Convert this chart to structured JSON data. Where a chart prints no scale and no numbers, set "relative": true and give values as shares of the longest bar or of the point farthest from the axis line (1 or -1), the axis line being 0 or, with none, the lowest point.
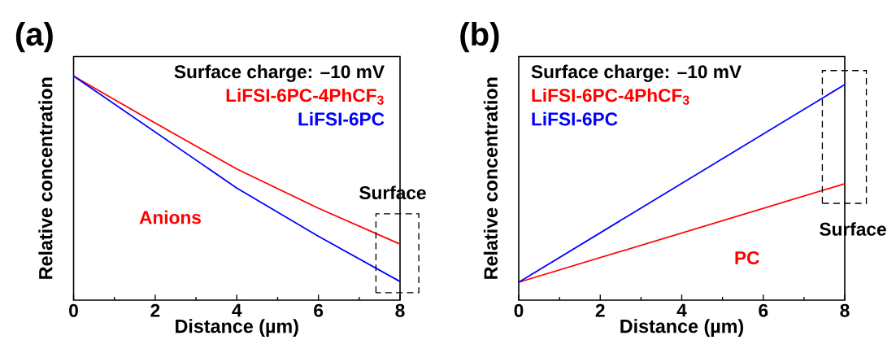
{
  "chart_data": [
    {
      "type": "line",
      "title": "(a)",
      "xlabel": "Distance (µm)",
      "ylabel": "Relative concentration",
      "legend_title": "Surface charge:  –10 mV",
      "legend": "top right",
      "relative": true,
      "xlim": [
        0,
        8
      ],
      "xticks": [
        0,
        2,
        4,
        6,
        8
      ],
      "x": [
        0,
        2,
        4,
        6,
        8
      ],
      "series": [
        {
          "name": "LiFSI-6PC-4PhCF$_{3}$",
          "color": "#ff0000",
          "values": [
            1,
            0.79,
            0.585,
            0.41,
            0.25
          ]
        },
        {
          "name": "LiFSI-6PC",
          "color": "#0000ff",
          "values": [
            1,
            0.75,
            0.5,
            0.285,
            0.083
          ]
        }
      ],
      "annotations": [
        "Anions",
        "Surface"
      ]
    },
    {
      "type": "line",
      "title": "(b)",
      "xlabel": "Distance (µm)",
      "ylabel": "Relative concentration",
      "legend_title": "Surface charge:  –10 mV",
      "legend": "top left",
      "relative": true,
      "xlim": [
        0,
        8
      ],
      "xticks": [
        0,
        2,
        4,
        6,
        8
      ],
      "x": [
        0,
        8
      ],
      "series": [
        {
          "name": "LiFSI-6PC-4PhCF$_{3}$",
          "color": "#ff0000",
          "values": [
            0.083,
            0.54
          ]
        },
        {
          "name": "LiFSI-6PC",
          "color": "#0000ff",
          "values": [
            0.083,
            1
          ]
        }
      ],
      "annotations": [
        "PC",
        "Surface"
      ]
    }
  ]
}
